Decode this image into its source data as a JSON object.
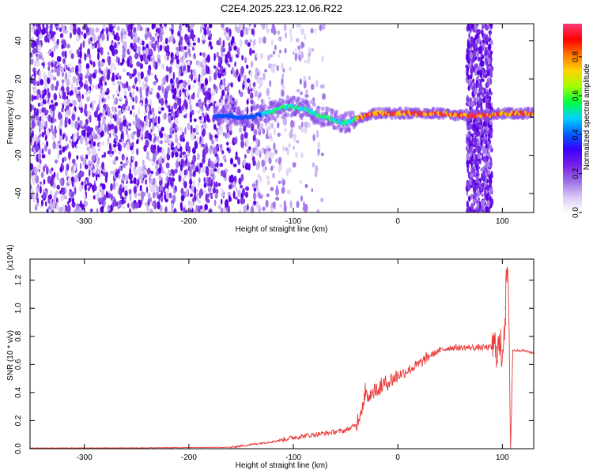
{
  "title": "C2E4.2025.223.12.06.R22",
  "chart_data": [
    {
      "type": "heatmap",
      "title": "",
      "xlabel": "Height of straight line (km)",
      "ylabel": "Frequency (Hz)",
      "xlim": [
        -352,
        130
      ],
      "ylim": [
        -50,
        49
      ],
      "x_ticks": [
        -300,
        -200,
        -100,
        0,
        100
      ],
      "y_ticks": [
        -40,
        -20,
        0,
        20,
        40
      ],
      "colorbar": {
        "label": "Normalized spectral amplitude",
        "range": [
          0.0,
          0.97
        ],
        "ticks": [
          0.0,
          0.2,
          0.4,
          0.6,
          0.8
        ],
        "tick_labels": [
          "0.0",
          "0.2",
          "0.4",
          "0.6",
          "0.8"
        ],
        "colormap": [
          "#ffffff",
          "#d9c7f5",
          "#9b6ee8",
          "#7a1fe6",
          "#3a00ff",
          "#0060ff",
          "#00d2ff",
          "#00ff40",
          "#a0ff00",
          "#ffd400",
          "#ff7a00",
          "#ff0000",
          "#ff3a78"
        ]
      },
      "features": {
        "noise_region": [
          -352,
          -110
        ],
        "signal_trace": [
          [
            -175,
            0
          ],
          [
            -165,
            1
          ],
          [
            -150,
            0
          ],
          [
            -140,
            0
          ],
          [
            -120,
            3
          ],
          [
            -105,
            6
          ],
          [
            -90,
            4
          ],
          [
            -75,
            1
          ],
          [
            -60,
            -2
          ],
          [
            -50,
            -3
          ],
          [
            -40,
            -1
          ],
          [
            -30,
            1
          ],
          [
            -20,
            2
          ],
          [
            -10,
            2
          ],
          [
            0,
            2
          ],
          [
            20,
            2
          ],
          [
            40,
            2
          ],
          [
            60,
            1
          ],
          [
            90,
            1
          ],
          [
            100,
            2
          ],
          [
            130,
            2
          ]
        ],
        "interference_band": [
          66,
          90
        ]
      }
    },
    {
      "type": "line",
      "title": "",
      "xlabel": "Height of straight line (km)",
      "ylabel": "SNR (10 * v/v)",
      "y_multiplier": "(x10^4)",
      "xlim": [
        -352,
        130
      ],
      "ylim": [
        0,
        1.35
      ],
      "x_ticks": [
        -300,
        -200,
        -100,
        0,
        100
      ],
      "y_ticks": [
        0.0,
        0.2,
        0.4,
        0.6,
        0.8,
        1.0,
        1.2
      ],
      "y_tick_labels": [
        "0.0",
        "0.2",
        "0.4",
        "0.6",
        "0.8",
        "1.0",
        "1.2"
      ],
      "series": [
        {
          "color": "#e83b3b",
          "x": [
            -352,
            -300,
            -250,
            -200,
            -160,
            -140,
            -120,
            -100,
            -80,
            -60,
            -50,
            -40,
            -32,
            -25,
            -15,
            0,
            10,
            20,
            30,
            40,
            50,
            60,
            70,
            80,
            90,
            95,
            100,
            103,
            105,
            108,
            110,
            120,
            130
          ],
          "y": [
            0.005,
            0.005,
            0.006,
            0.008,
            0.01,
            0.03,
            0.05,
            0.08,
            0.1,
            0.12,
            0.13,
            0.17,
            0.35,
            0.4,
            0.45,
            0.52,
            0.56,
            0.6,
            0.66,
            0.7,
            0.72,
            0.72,
            0.72,
            0.72,
            0.72,
            0.72,
            0.7,
            1.0,
            1.35,
            0.06,
            0.7,
            0.7,
            0.68
          ]
        }
      ]
    }
  ]
}
